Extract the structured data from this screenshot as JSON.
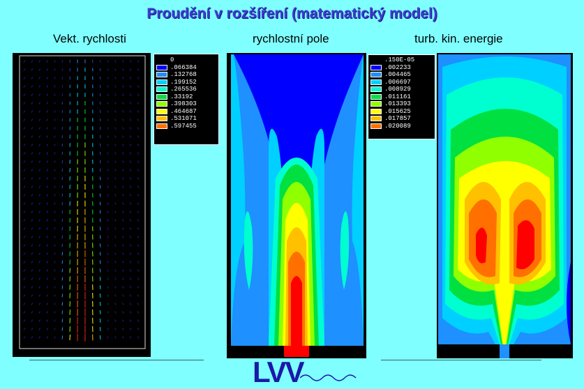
{
  "title": "Proudění v rozšíření (matematický model)",
  "panels": {
    "left_label": "Vekt. rychlosti",
    "middle_label": "rychlostní pole",
    "right_label": "turb. kin. energie"
  },
  "legend_velocity": {
    "values": [
      "0",
      ".066384",
      ".132768",
      ".199152",
      ".265536",
      ".33192",
      ".398303",
      ".464687",
      ".531071",
      ".597455"
    ]
  },
  "legend_tke": {
    "values": [
      ".150E-05",
      ".002233",
      ".004465",
      ".006697",
      ".008929",
      ".011161",
      ".013393",
      ".015625",
      ".017857",
      ".020089"
    ]
  },
  "legend_colors": [
    "#0000ff",
    "#1e90ff",
    "#00d0ff",
    "#00ffd0",
    "#00e040",
    "#90ff00",
    "#ffff00",
    "#ffc000",
    "#ff7000",
    "#ff0000"
  ],
  "logo": "LVV"
}
